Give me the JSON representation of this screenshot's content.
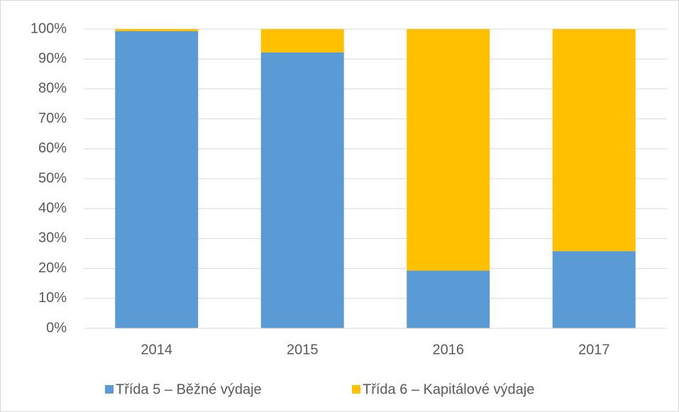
{
  "chart_data": {
    "type": "bar",
    "stacked": true,
    "categories": [
      "2014",
      "2015",
      "2016",
      "2017"
    ],
    "series": [
      {
        "name": "Třída 5 – Běžné výdaje",
        "color": "#5b9bd5",
        "values": [
          99.3,
          92.2,
          19.3,
          25.8
        ]
      },
      {
        "name": "Třída 6 – Kapitálové výdaje",
        "color": "#ffc000",
        "values": [
          0.7,
          7.8,
          80.7,
          74.2
        ]
      }
    ],
    "ylim": [
      0,
      100
    ],
    "yticks": [
      {
        "value": 0,
        "label": "0%"
      },
      {
        "value": 10,
        "label": "10%"
      },
      {
        "value": 20,
        "label": "20%"
      },
      {
        "value": 30,
        "label": "30%"
      },
      {
        "value": 40,
        "label": "40%"
      },
      {
        "value": 50,
        "label": "50%"
      },
      {
        "value": 60,
        "label": "60%"
      },
      {
        "value": 70,
        "label": "70%"
      },
      {
        "value": 80,
        "label": "80%"
      },
      {
        "value": 90,
        "label": "90%"
      },
      {
        "value": 100,
        "label": "100%"
      }
    ],
    "grid": true,
    "legend": "bottom"
  }
}
